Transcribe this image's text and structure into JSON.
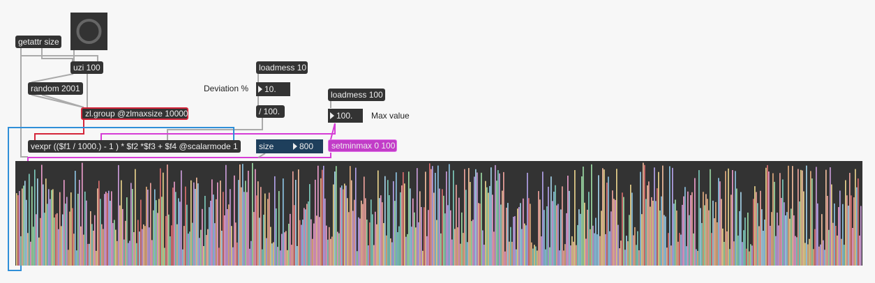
{
  "patcher": {
    "objects": {
      "getattr": "getattr size",
      "uzi": "uzi 100",
      "random": "random 2001",
      "zlgroup": "zl.group @zlmaxsize 10000",
      "vexpr": "vexpr (($f1 / 1000.) - 1 ) * $f2 *$f3 + $f4 @scalarmode 1",
      "loadmess10": "loadmess 10",
      "divide": "/ 100.",
      "loadmess100": "loadmess 100",
      "setminmax": "setminmax 0 100",
      "size": "size"
    },
    "comments": {
      "deviation": "Deviation %",
      "maxvalue": "Max value"
    },
    "numbers": {
      "deviation": "10.",
      "maxvalue": "100.",
      "size": "800"
    }
  }
}
